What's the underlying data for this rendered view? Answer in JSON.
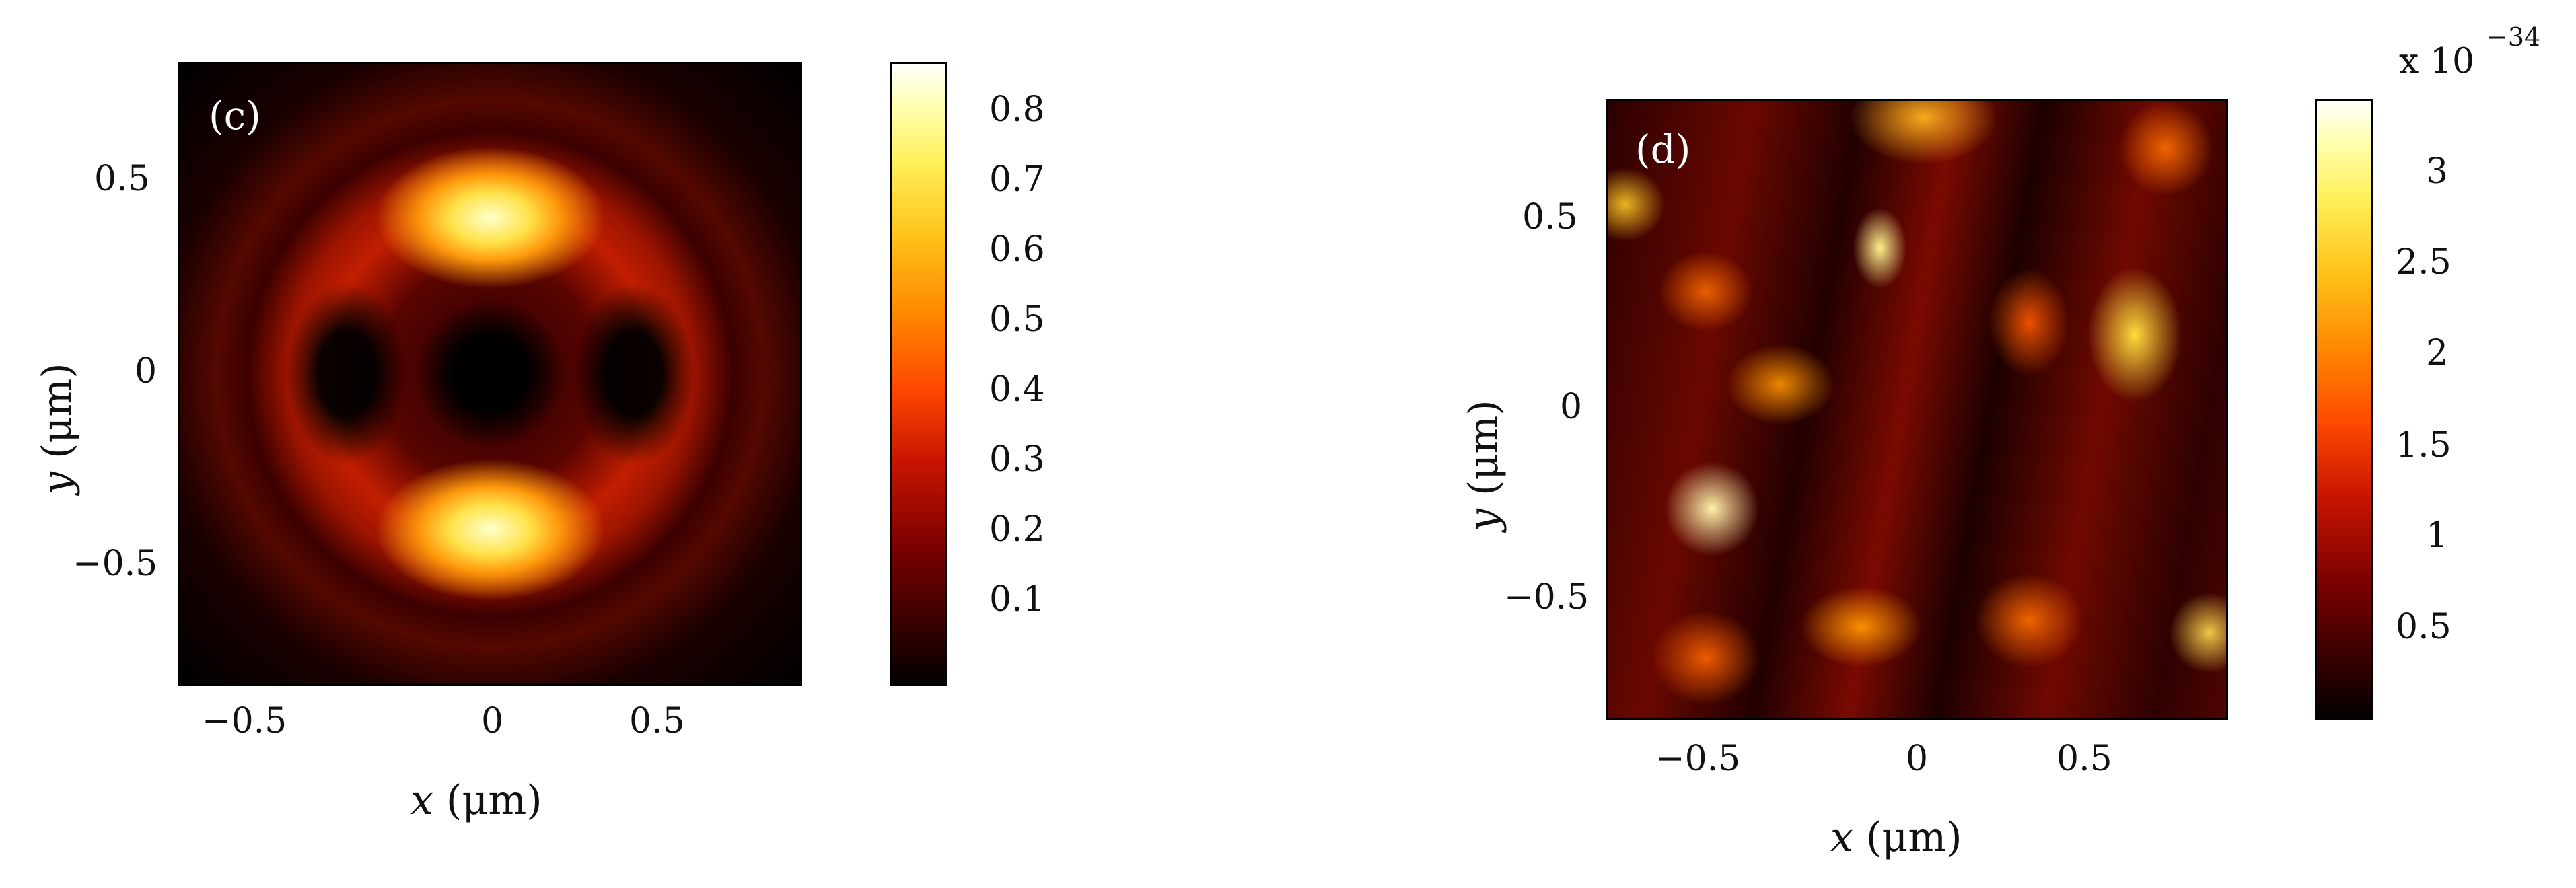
{
  "figure": [
    {
      "panel_label": "(c)",
      "x_ticks": [
        "−0.5",
        "0",
        "0.5"
      ],
      "y_ticks": [
        "0.5",
        "0",
        "−0.5"
      ],
      "xlabel_var": "x",
      "xlabel_unit": " (μm)",
      "ylabel_var": "y",
      "ylabel_unit": " (μm)",
      "colorbar_ticks": [
        "0.8",
        "0.7",
        "0.6",
        "0.5",
        "0.4",
        "0.3",
        "0.2",
        "0.1"
      ],
      "colorbar_exponent": ""
    },
    {
      "panel_label": "(d)",
      "x_ticks": [
        "−0.5",
        "0",
        "0.5"
      ],
      "y_ticks": [
        "0.5",
        "0",
        "−0.5"
      ],
      "xlabel_var": "x",
      "xlabel_unit": " (μm)",
      "ylabel_var": "y",
      "ylabel_unit": " (μm)",
      "colorbar_ticks": [
        "3",
        "2.5",
        "2",
        "1.5",
        "1",
        "0.5"
      ],
      "colorbar_exponent_base": "x 10",
      "colorbar_exponent_power": "−34"
    }
  ],
  "chart_data": [
    {
      "type": "heatmap",
      "title": "(c)",
      "xlabel": "x (μm)",
      "ylabel": "y (μm)",
      "xlim": [
        -0.75,
        0.85
      ],
      "ylim": [
        -0.8,
        0.8
      ],
      "colorbar_range": [
        0,
        0.87
      ],
      "colormap": "hot",
      "description_values": {
        "central_minimum": 0.0,
        "upper_lobe_peak": 0.85,
        "lower_lobe_peak": 0.85,
        "ring_value": 0.3
      }
    },
    {
      "type": "heatmap",
      "title": "(d)",
      "xlabel": "x (μm)",
      "ylabel": "y (μm)",
      "xlim": [
        -0.8,
        0.8
      ],
      "ylim": [
        -0.8,
        0.8
      ],
      "colorbar_range": [
        0,
        3.4e-34
      ],
      "colormap": "hot"
    }
  ],
  "colors": {
    "axis": "#000000",
    "inset_label": "#ffffff"
  }
}
